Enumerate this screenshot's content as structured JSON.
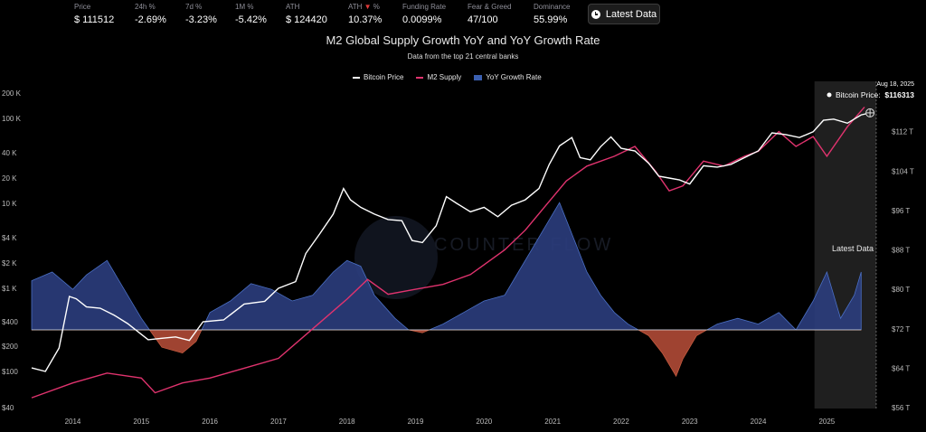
{
  "stats": [
    {
      "label": "Price",
      "value": "$ 111512"
    },
    {
      "label": "24h %",
      "value": "-2.69%"
    },
    {
      "label": "7d %",
      "value": "-3.23%"
    },
    {
      "label": "1M %",
      "value": "-5.42%"
    },
    {
      "label": "ATH",
      "value": "$ 124420"
    },
    {
      "label": "ATH ▼ %",
      "value": "10.37%"
    },
    {
      "label": "Funding Rate",
      "value": "0.0099%"
    },
    {
      "label": "Fear & Greed",
      "value": "47/100"
    },
    {
      "label": "Dominance",
      "value": "55.99%"
    }
  ],
  "latest_button": {
    "label": "Latest Data"
  },
  "colors": {
    "btc": "#ffffff",
    "m2": "#e0336e",
    "yoy_pos": "#2b3d7d",
    "yoy_neg": "#b04a36",
    "zone": "#2a2a2a"
  },
  "watermark": "COUNTER FLOW",
  "chart_data": {
    "type": "line",
    "title": "M2 Global Supply Growth YoY and YoY Growth Rate",
    "subtitle": "Data from the top 21 central banks",
    "legend_position": "top-center",
    "x_ticks": [
      "2014",
      "2015",
      "2016",
      "2017",
      "2018",
      "2019",
      "2020",
      "2021",
      "2022",
      "2023",
      "2024",
      "2025"
    ],
    "left_axis_ticks": [
      "200 K",
      "100 K",
      "40 K",
      "20 K",
      "10 K",
      "$4 K",
      "$2 K",
      "$1 K",
      "$400",
      "$200",
      "$100",
      "$40"
    ],
    "right_axis_ticks": [
      "$112 T",
      "$104 T",
      "$96 T",
      "$88 T",
      "$80 T",
      "$72 T",
      "$64 T",
      "$56 T"
    ],
    "left_scale": "log",
    "right_range": [
      56,
      120
    ],
    "grid": false,
    "series": [
      {
        "name": "Bitcoin Price",
        "axis": "left",
        "x": [
          2013.4,
          2013.6,
          2013.8,
          2013.95,
          2014.05,
          2014.2,
          2014.4,
          2014.6,
          2014.8,
          2015.0,
          2015.1,
          2015.3,
          2015.5,
          2015.7,
          2015.9,
          2016.2,
          2016.5,
          2016.8,
          2017.0,
          2017.25,
          2017.4,
          2017.6,
          2017.8,
          2017.95,
          2018.05,
          2018.2,
          2018.4,
          2018.6,
          2018.8,
          2018.95,
          2019.1,
          2019.3,
          2019.45,
          2019.6,
          2019.8,
          2020.0,
          2020.2,
          2020.4,
          2020.6,
          2020.8,
          2020.95,
          2021.1,
          2021.28,
          2021.4,
          2021.55,
          2021.7,
          2021.85,
          2022.0,
          2022.2,
          2022.4,
          2022.55,
          2022.7,
          2022.85,
          2023.0,
          2023.2,
          2023.4,
          2023.6,
          2023.8,
          2024.0,
          2024.2,
          2024.4,
          2024.6,
          2024.8,
          2024.95,
          2025.1,
          2025.3,
          2025.5,
          2025.63
        ],
        "y": [
          110,
          100,
          190,
          800,
          750,
          600,
          580,
          480,
          380,
          280,
          240,
          250,
          260,
          235,
          400,
          420,
          650,
          700,
          1000,
          1200,
          2600,
          4400,
          7500,
          15000,
          11000,
          9000,
          7500,
          6500,
          6300,
          3700,
          3500,
          5500,
          12000,
          10000,
          8000,
          9000,
          7000,
          9500,
          11000,
          15000,
          29000,
          48000,
          60000,
          35000,
          33000,
          47000,
          61000,
          45000,
          42000,
          30000,
          21000,
          20000,
          19000,
          17000,
          28000,
          27000,
          29000,
          35000,
          42000,
          68000,
          65000,
          60000,
          70000,
          95000,
          98000,
          88000,
          110000,
          116313
        ]
      },
      {
        "name": "M2 Supply",
        "axis": "right",
        "x": [
          2013.4,
          2014.0,
          2014.5,
          2015.0,
          2015.2,
          2015.6,
          2016.0,
          2016.5,
          2017.0,
          2017.5,
          2018.0,
          2018.3,
          2018.6,
          2019.0,
          2019.4,
          2019.8,
          2020.0,
          2020.3,
          2020.6,
          2020.9,
          2021.2,
          2021.5,
          2021.9,
          2022.2,
          2022.5,
          2022.7,
          2022.9,
          2023.2,
          2023.5,
          2023.8,
          2024.0,
          2024.3,
          2024.55,
          2024.8,
          2025.0,
          2025.3,
          2025.55
        ],
        "y": [
          58,
          61,
          63,
          62,
          59,
          61,
          62,
          64,
          66,
          72,
          78,
          82,
          79,
          80,
          81,
          83,
          85,
          88,
          92,
          97,
          102,
          105,
          107,
          109,
          104,
          100,
          101,
          106,
          105,
          107,
          108,
          112,
          109,
          111,
          107,
          113,
          117
        ]
      }
    ],
    "yoy_growth_rate": {
      "name": "YoY Growth Rate",
      "x": [
        2013.4,
        2013.7,
        2014.0,
        2014.2,
        2014.5,
        2014.8,
        2015.0,
        2015.3,
        2015.6,
        2015.8,
        2016.0,
        2016.3,
        2016.6,
        2016.9,
        2017.2,
        2017.5,
        2017.8,
        2018.0,
        2018.2,
        2018.4,
        2018.7,
        2018.9,
        2019.1,
        2019.4,
        2019.7,
        2020.0,
        2020.3,
        2020.5,
        2020.7,
        2020.9,
        2021.1,
        2021.3,
        2021.5,
        2021.7,
        2021.9,
        2022.1,
        2022.4,
        2022.6,
        2022.8,
        2022.9,
        2023.1,
        2023.4,
        2023.7,
        2024.0,
        2024.3,
        2024.55,
        2024.8,
        2025.0,
        2025.2,
        2025.4,
        2025.5
      ],
      "y": [
        8.5,
        10,
        7,
        9.5,
        12,
        6,
        2,
        -3,
        -4,
        -2,
        3,
        5,
        8,
        7,
        5,
        6,
        10,
        12,
        11,
        6,
        2,
        0,
        -0.5,
        1,
        3,
        5,
        6,
        10,
        14,
        18,
        22,
        16,
        10,
        6,
        3,
        1,
        -1,
        -4,
        -8,
        -5,
        -1,
        1,
        2,
        1,
        3,
        0,
        5,
        10,
        2,
        6,
        10
      ]
    }
  },
  "tooltip": {
    "date": "Aug 18, 2025",
    "label": "Bitcoin Price:",
    "value": "$116313"
  },
  "zone_label": "Latest Data"
}
